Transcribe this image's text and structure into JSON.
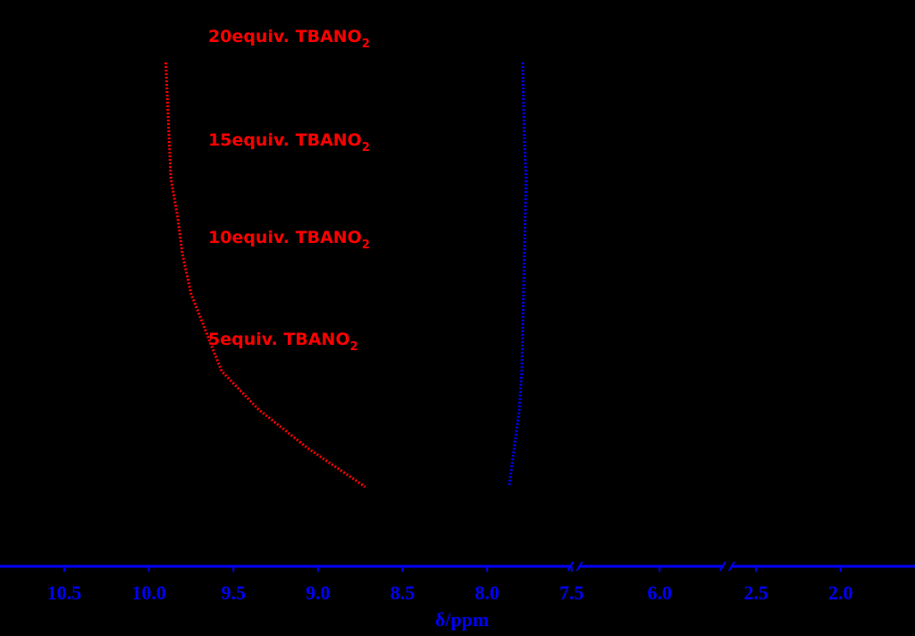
{
  "chart_data": {
    "type": "line",
    "xlabel": "δ/ppm",
    "xsegments": [
      [
        10.88,
        7.48
      ],
      [
        6.5,
        5.6
      ],
      [
        2.67,
        1.56
      ]
    ],
    "xticks": [
      10.5,
      {
        "value": 10,
        "label": "10.0"
      },
      9.5,
      {
        "value": 9,
        "label": "9.0"
      },
      8.5,
      {
        "value": 8,
        "label": "8.0"
      },
      7.5,
      {
        "value": 6,
        "label": "6.0"
      },
      2.5,
      {
        "value": 2,
        "label": "2.0"
      }
    ],
    "axis_color": "#0000ff",
    "background": "#000000",
    "annotations": [
      {
        "text": "20equiv. TBANO",
        "subscript": "2"
      },
      {
        "text": "15equiv. TBANO",
        "subscript": "2"
      },
      {
        "text": "10equiv. TBANO",
        "subscript": "2"
      },
      {
        "text": "5equiv. TBANO",
        "subscript": "2"
      }
    ],
    "annotation_color": "#ff0000",
    "series": [
      {
        "color": "#ff0000",
        "values": [
          9.9,
          9.89,
          9.88,
          9.87,
          9.83,
          9.8,
          9.75,
          9.66,
          9.57,
          9.35,
          9.06,
          8.72
        ]
      },
      {
        "color": "#0000ff",
        "values": [
          7.79,
          7.785,
          7.78,
          7.77,
          7.775,
          7.78,
          7.785,
          7.79,
          7.795,
          7.81,
          7.84,
          7.87
        ]
      }
    ]
  }
}
